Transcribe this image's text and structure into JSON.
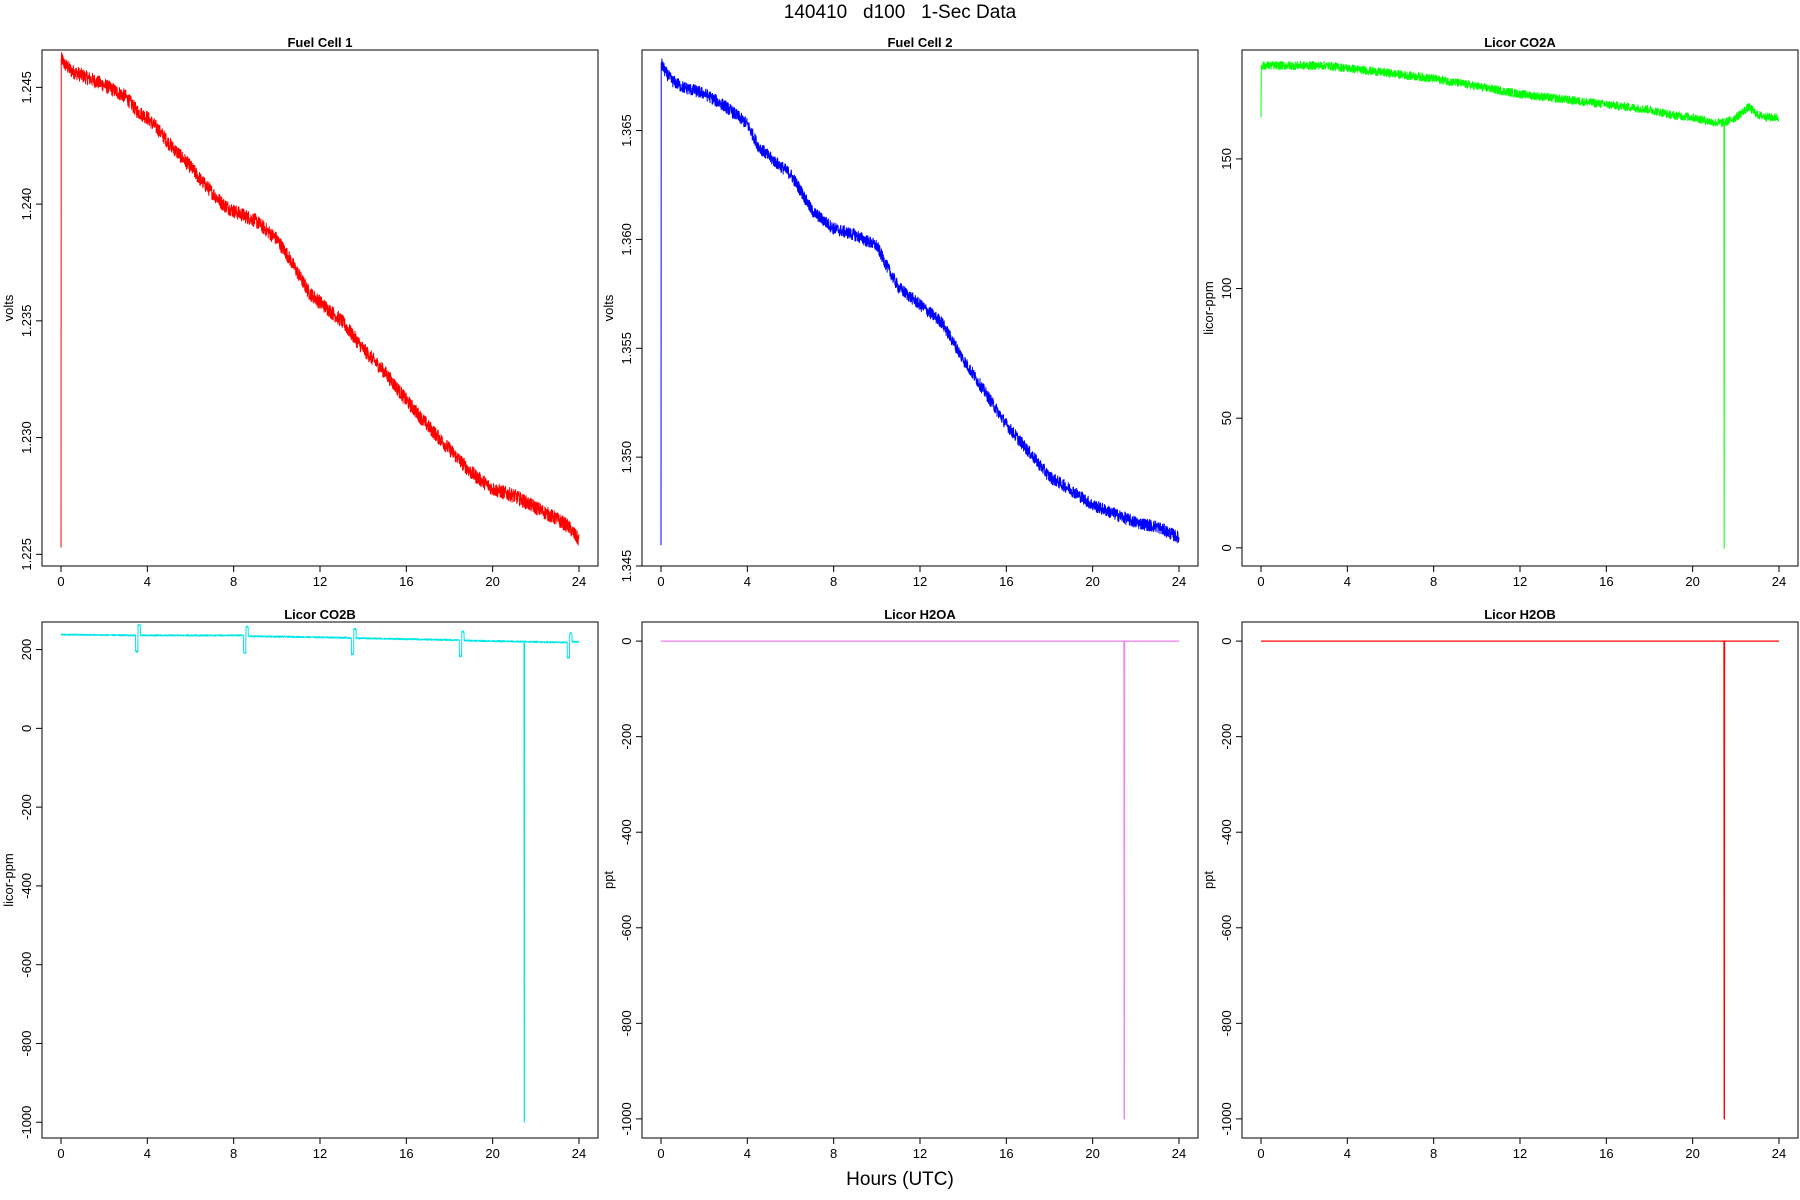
{
  "title": "140410   d100   1-Sec Data",
  "xlabel": "Hours (UTC)",
  "chart_data": [
    {
      "type": "line",
      "title": "Fuel Cell 1",
      "ylabel": "volts",
      "color": "#ff0000",
      "xlim": [
        0,
        24
      ],
      "ylim": [
        1.2245,
        1.2466
      ],
      "xticks": [
        0,
        4,
        8,
        12,
        16,
        20,
        24
      ],
      "yticks": [
        "1.225",
        "1.230",
        "1.235",
        "1.240",
        "1.245"
      ],
      "noise": 0.0003,
      "series": [
        {
          "x": [
            0,
            0.01,
            0.05,
            0.15,
            0.5,
            1,
            2,
            3,
            3.5,
            4,
            4.5,
            5,
            5.5,
            6,
            6.5,
            7,
            7.5,
            8,
            9,
            10,
            10.5,
            11,
            11.5,
            12,
            13,
            14,
            15,
            16,
            17,
            18,
            19,
            20,
            21,
            22,
            23,
            23.5,
            24
          ],
          "y": [
            1.2253,
            1.2462,
            1.2462,
            1.246,
            1.2457,
            1.2455,
            1.2451,
            1.2446,
            1.244,
            1.2437,
            1.2432,
            1.2426,
            1.2421,
            1.2416,
            1.241,
            1.2405,
            1.24,
            1.2397,
            1.2393,
            1.2385,
            1.2378,
            1.237,
            1.2362,
            1.2358,
            1.235,
            1.2338,
            1.2328,
            1.2316,
            1.2305,
            1.2295,
            1.2285,
            1.2278,
            1.2275,
            1.227,
            1.2265,
            1.2262,
            1.2256
          ]
        }
      ]
    },
    {
      "type": "line",
      "title": "Fuel Cell 2",
      "ylabel": "volts",
      "color": "#0000ff",
      "xlim": [
        0,
        24
      ],
      "ylim": [
        1.345,
        1.3687
      ],
      "xticks": [
        0,
        4,
        8,
        12,
        16,
        20,
        24
      ],
      "yticks": [
        "1.345",
        "1.350",
        "1.355",
        "1.360",
        "1.365"
      ],
      "noise": 0.00028,
      "series": [
        {
          "x": [
            0,
            0.01,
            0.05,
            0.2,
            0.5,
            1,
            2,
            3,
            4,
            4.5,
            5,
            6,
            6.5,
            7,
            8,
            9,
            10,
            10.5,
            11,
            12,
            13,
            14,
            15,
            16,
            17,
            18,
            19,
            20,
            21,
            22,
            23,
            24
          ],
          "y": [
            1.346,
            1.3681,
            1.368,
            1.3677,
            1.3673,
            1.367,
            1.3667,
            1.3661,
            1.3653,
            1.3643,
            1.3638,
            1.363,
            1.3622,
            1.3613,
            1.3605,
            1.3602,
            1.3597,
            1.3587,
            1.3578,
            1.357,
            1.3562,
            1.3545,
            1.353,
            1.3515,
            1.3503,
            1.3491,
            1.3485,
            1.3478,
            1.3474,
            1.347,
            1.3468,
            1.3463
          ]
        }
      ]
    },
    {
      "type": "line",
      "title": "Licor CO2A",
      "ylabel": "licor-ppm",
      "color": "#00ff00",
      "xlim": [
        0,
        24
      ],
      "ylim": [
        -7,
        192
      ],
      "xticks": [
        0,
        4,
        8,
        12,
        16,
        20,
        24
      ],
      "yticks": [
        "0",
        "50",
        "100",
        "150"
      ],
      "noise": 1.6,
      "series": [
        {
          "x": [
            0,
            0.01,
            0.05,
            1,
            2,
            3,
            4,
            6,
            8,
            10,
            12,
            14,
            16,
            18,
            19,
            20,
            21,
            21.45,
            21.46,
            21.47,
            21.48,
            22,
            22.6,
            23,
            23.5,
            24
          ],
          "y": [
            166,
            186,
            186,
            186,
            186,
            186,
            185,
            183,
            181,
            178,
            175,
            173,
            171,
            169,
            167,
            166,
            164,
            164,
            0,
            164,
            164,
            166,
            170,
            167,
            166,
            166
          ]
        }
      ]
    },
    {
      "type": "line",
      "title": "Licor CO2B",
      "ylabel": "licor-ppm",
      "color": "#00e6e6",
      "xlim": [
        0,
        24
      ],
      "ylim": [
        -1040,
        270
      ],
      "xticks": [
        0,
        4,
        8,
        12,
        16,
        20,
        24
      ],
      "yticks": [
        "-1000",
        "-800",
        "-600",
        "-400",
        "-200",
        "0",
        "200"
      ],
      "noise": 2,
      "series": [
        {
          "x": [
            0,
            3.45,
            3.46,
            3.56,
            3.57,
            3.67,
            3.68,
            8.45,
            8.46,
            8.56,
            8.57,
            8.67,
            8.68,
            13.45,
            13.46,
            13.56,
            13.57,
            13.67,
            13.68,
            18.45,
            18.46,
            18.56,
            18.57,
            18.67,
            18.68,
            21.45,
            21.46,
            21.47,
            21.48,
            23.45,
            23.46,
            23.56,
            23.57,
            23.67,
            23.68,
            24
          ],
          "y": [
            238,
            236,
            195,
            195,
            262,
            262,
            236,
            236,
            192,
            192,
            258,
            258,
            234,
            230,
            188,
            188,
            252,
            252,
            229,
            224,
            183,
            183,
            246,
            246,
            223,
            220,
            -1000,
            -1000,
            220,
            218,
            180,
            180,
            242,
            242,
            220,
            220
          ]
        }
      ]
    },
    {
      "type": "line",
      "title": "Licor H2OA",
      "ylabel": "ppt",
      "color": "#ee82ee",
      "xlim": [
        0,
        24
      ],
      "ylim": [
        -1040,
        40
      ],
      "xticks": [
        0,
        4,
        8,
        12,
        16,
        20,
        24
      ],
      "yticks": [
        "-1000",
        "-800",
        "-600",
        "-400",
        "-200",
        "0"
      ],
      "noise": 0,
      "series": [
        {
          "x": [
            0,
            21.45,
            21.46,
            21.47,
            21.48,
            24
          ],
          "y": [
            0,
            0,
            -1000,
            -1000,
            0,
            0
          ]
        }
      ]
    },
    {
      "type": "line",
      "title": "Licor H2OB",
      "ylabel": "ppt",
      "color": "#ff0000",
      "xlim": [
        0,
        24
      ],
      "ylim": [
        -1040,
        40
      ],
      "xticks": [
        0,
        4,
        8,
        12,
        16,
        20,
        24
      ],
      "yticks": [
        "-1000",
        "-800",
        "-600",
        "-400",
        "-200",
        "0"
      ],
      "noise": 0,
      "series": [
        {
          "x": [
            0,
            21.45,
            21.46,
            21.47,
            21.48,
            24
          ],
          "y": [
            0,
            0,
            -1000,
            -1000,
            0,
            0
          ]
        }
      ]
    }
  ]
}
